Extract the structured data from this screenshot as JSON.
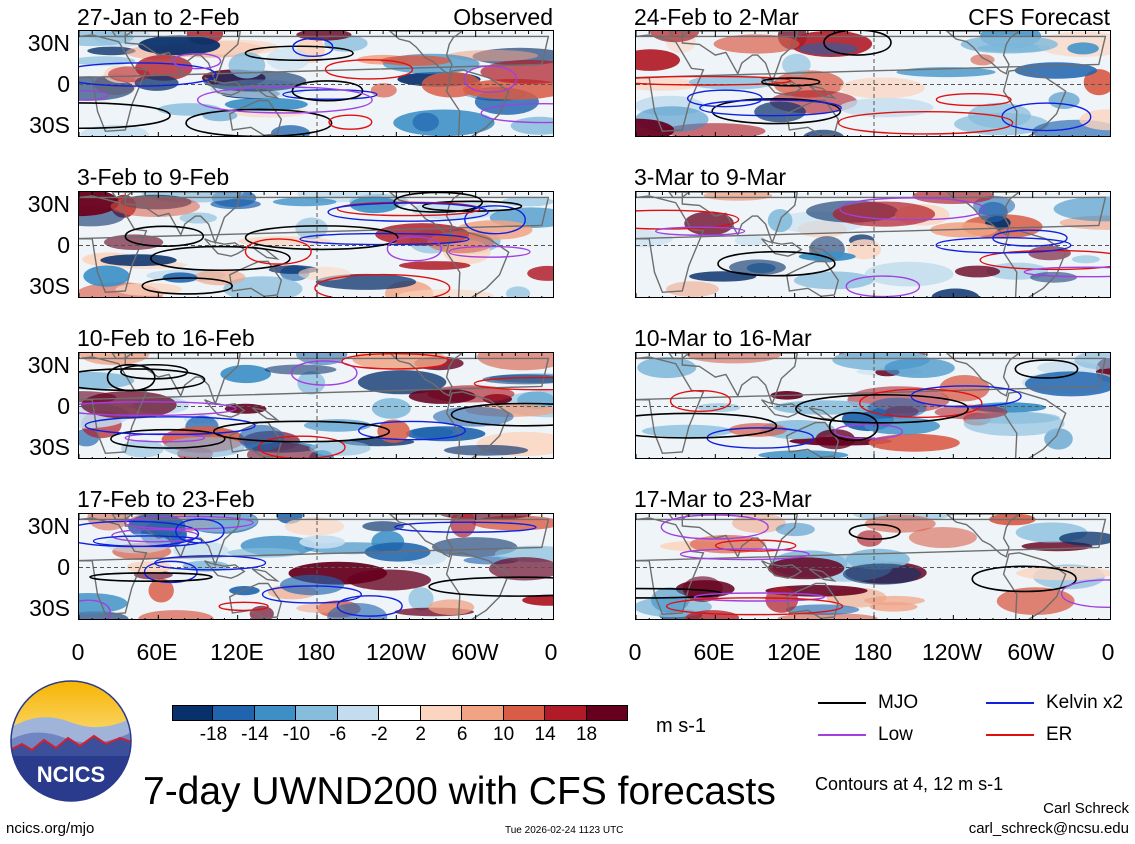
{
  "colors": {
    "mjo": "#000000",
    "low": "#a040e0",
    "kelvin": "#1020e0",
    "er": "#e01010",
    "colorbar": [
      "#08306b",
      "#1f64ad",
      "#3d8fc6",
      "#86bcdc",
      "#c3ddee",
      "#ffffff",
      "#fbd5c0",
      "#f1a384",
      "#d95c47",
      "#b01b27",
      "#67001f"
    ]
  },
  "columns": {
    "observed_label": "Observed",
    "forecast_label": "CFS Forecast"
  },
  "panels": {
    "left": [
      {
        "title": "27-Jan to 2-Feb"
      },
      {
        "title": "3-Feb to 9-Feb"
      },
      {
        "title": "10-Feb to 16-Feb"
      },
      {
        "title": "17-Feb to 23-Feb"
      }
    ],
    "right": [
      {
        "title": "24-Feb to 2-Mar"
      },
      {
        "title": "3-Mar to 9-Mar"
      },
      {
        "title": "10-Mar to 16-Mar"
      },
      {
        "title": "17-Mar to 23-Mar"
      }
    ]
  },
  "axes": {
    "y_labels": [
      "30N",
      "0",
      "30S"
    ],
    "x_labels": [
      "0",
      "60E",
      "120E",
      "180",
      "120W",
      "60W",
      "0"
    ]
  },
  "colorbar": {
    "ticks": [
      "-18",
      "-14",
      "-10",
      "-6",
      "-2",
      "2",
      "6",
      "10",
      "14",
      "18"
    ],
    "units": "m s-1"
  },
  "legend": {
    "mjo": "MJO",
    "low": "Low",
    "kelvin": "Kelvin x2",
    "er": "ER",
    "contours_note": "Contours at 4, 12 m s-1"
  },
  "logo": {
    "text": "NCICS"
  },
  "footer": {
    "main_title": "7-day UWND200 with CFS forecasts",
    "author": "Carl Schreck",
    "email": "carl_schreck@ncsu.edu",
    "url": "ncics.org/mjo",
    "timestamp": "Tue 2026-02-24 1123 UTC"
  }
}
